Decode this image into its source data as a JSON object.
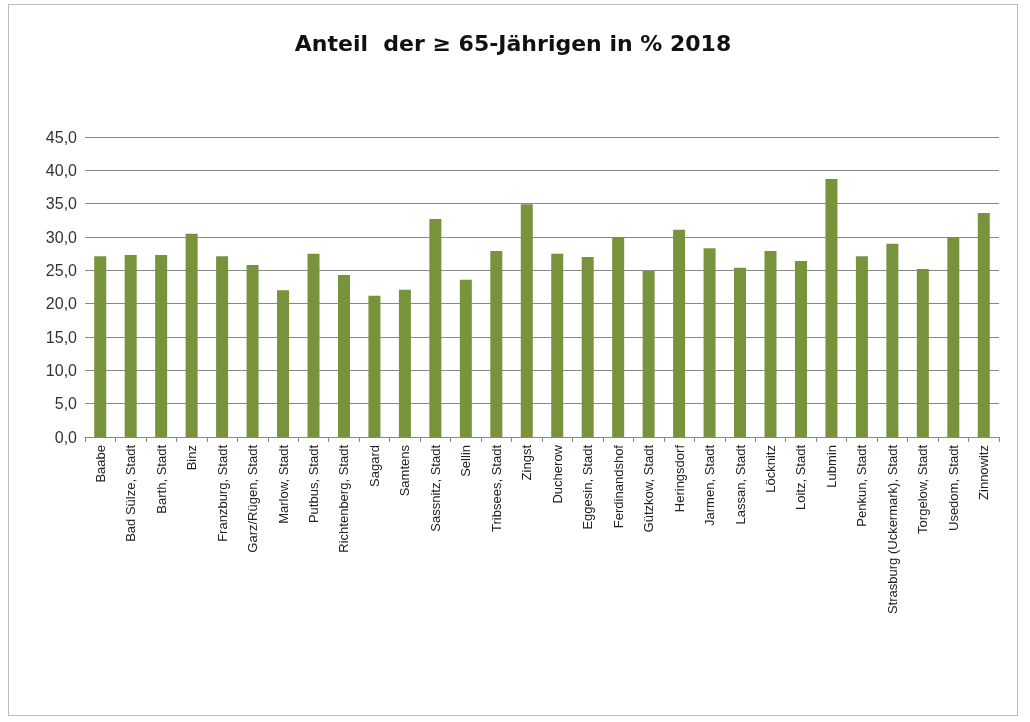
{
  "chart_data": {
    "type": "bar",
    "title": "Anteil  der ≥ 65-Jährigen in % 2018",
    "categories": [
      "Baabe",
      "Bad Sülze, Stadt",
      "Barth, Stadt",
      "Binz",
      "Franzburg, Stadt",
      "Garz/Rügen, Stadt",
      "Marlow, Stadt",
      "Putbus, Stadt",
      "Richtenberg, Stadt",
      "Sagard",
      "Samtens",
      "Sassnitz, Stadt",
      "Sellin",
      "Tribsees, Stadt",
      "Zingst",
      "Ducherow",
      "Eggesin, Stadt",
      "Ferdinandshof",
      "Gützkow, Stadt",
      "Heringsdorf",
      "Jarmen, Stadt",
      "Lassan, Stadt",
      "Löcknitz",
      "Loitz, Stadt",
      "Lubmin",
      "Penkun, Stadt",
      "Strasburg (Uckermark), Stadt",
      "Torgelow, Stadt",
      "Usedom, Stadt",
      "Zinnowitz"
    ],
    "values": [
      27.1,
      27.3,
      27.3,
      30.5,
      27.1,
      25.8,
      22.0,
      27.5,
      24.3,
      21.2,
      22.1,
      32.7,
      23.6,
      27.9,
      34.9,
      27.5,
      27.0,
      30.0,
      24.9,
      31.1,
      28.3,
      25.4,
      27.9,
      26.4,
      38.7,
      27.1,
      29.0,
      25.2,
      30.0,
      33.6
    ],
    "color": "#77933c",
    "ylim": [
      0,
      45
    ],
    "yticks": [
      {
        "value": 0,
        "label": "0,0"
      },
      {
        "value": 5,
        "label": "5,0"
      },
      {
        "value": 10,
        "label": "10,0"
      },
      {
        "value": 15,
        "label": "15,0"
      },
      {
        "value": 20,
        "label": "20,0"
      },
      {
        "value": 25,
        "label": "25,0"
      },
      {
        "value": 30,
        "label": "30,0"
      },
      {
        "value": 35,
        "label": "35,0"
      },
      {
        "value": 40,
        "label": "40,0"
      },
      {
        "value": 45,
        "label": "45,0"
      }
    ],
    "grid": "y"
  }
}
